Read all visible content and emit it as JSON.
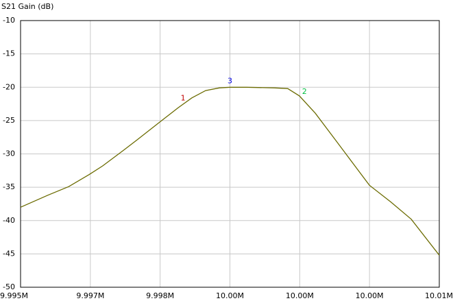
{
  "chart_data": {
    "type": "line",
    "title": "S21 Gain (dB)",
    "x": [
      9995000,
      9995650,
      9996150,
      9996640,
      9996960,
      9997450,
      9997780,
      9998330,
      9998760,
      9999090,
      9999420,
      9999750,
      10000000,
      10000400,
      10001060,
      10001380,
      10001660,
      10002040,
      10002530,
      10003020,
      10003330,
      10003840,
      10004330,
      10005000
    ],
    "series": [
      {
        "color": "#6b6b00",
        "values": [
          -38.0,
          -36.2,
          -34.9,
          -33.1,
          -31.8,
          -29.5,
          -27.9,
          -25.2,
          -23.1,
          -21.6,
          -20.5,
          -20.1,
          -20.0,
          -20.0,
          -20.1,
          -20.2,
          -21.3,
          -23.9,
          -28.0,
          -32.1,
          -34.7,
          -37.2,
          -39.8,
          -45.2
        ]
      }
    ],
    "markers": [
      {
        "label": "1",
        "color": "#c00000",
        "x": 9998880,
        "y": -22.6
      },
      {
        "label": "2",
        "color": "#00c040",
        "x": 10001780,
        "y": -21.6
      },
      {
        "label": "3",
        "color": "#0000e0",
        "x": 10000000,
        "y": -20.0
      }
    ],
    "xlim": [
      9995000,
      10005000
    ],
    "xticks": [
      {
        "value": 9995000,
        "label": "9.995M"
      },
      {
        "value": 9996667,
        "label": "9.997M"
      },
      {
        "value": 9998333,
        "label": "9.998M"
      },
      {
        "value": 10000000,
        "label": "10.00M"
      },
      {
        "value": 10001667,
        "label": "10.00M"
      },
      {
        "value": 10003333,
        "label": "10.00M"
      },
      {
        "value": 10005000,
        "label": "10.01M"
      }
    ],
    "ylim": [
      -50,
      -10
    ],
    "yticks": [
      -10,
      -15,
      -20,
      -25,
      -30,
      -35,
      -40,
      -45,
      -50
    ],
    "grid": true
  }
}
